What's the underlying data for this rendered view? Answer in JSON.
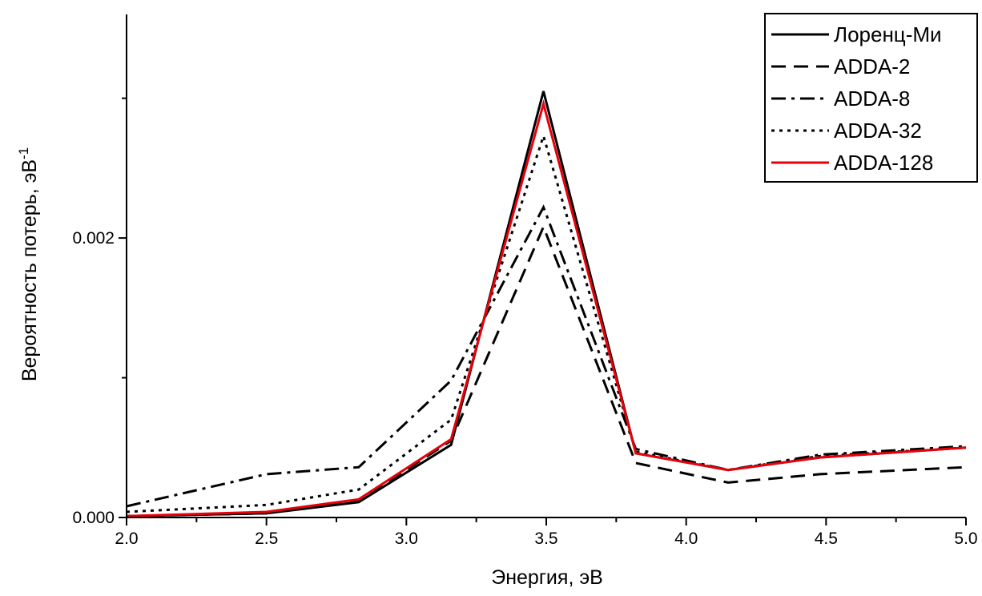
{
  "chart_data": {
    "type": "line",
    "xlabel": "Энергия, эВ",
    "ylabel": "Вероятность потерь, эВ",
    "ylabel_superscript": "-1",
    "xlim": [
      2.0,
      5.0
    ],
    "ylim": [
      0.0,
      0.0036
    ],
    "x_ticks": [
      2.0,
      2.5,
      3.0,
      3.5,
      4.0,
      4.5,
      5.0
    ],
    "x_tick_labels": [
      "2.0",
      "2.5",
      "3.0",
      "3.5",
      "4.0",
      "4.5",
      "5.0"
    ],
    "y_ticks": [
      0.0,
      0.002
    ],
    "y_tick_labels": [
      "0.000",
      "0.002"
    ],
    "grid": false,
    "legend_position": "top-right",
    "x": [
      2.0,
      2.5,
      2.83,
      3.16,
      3.49,
      3.82,
      4.15,
      4.48,
      5.0
    ],
    "series": [
      {
        "name": "Лоренц-Ми",
        "style": "solid",
        "color": "#000000",
        "values": [
          1e-05,
          3e-05,
          0.00011,
          0.00052,
          0.00305,
          0.00046,
          0.00034,
          0.00043,
          0.0005
        ]
      },
      {
        "name": "ADDA-2",
        "style": "dash",
        "color": "#000000",
        "values": [
          1e-05,
          3e-05,
          0.00012,
          0.00055,
          0.00208,
          0.00039,
          0.00025,
          0.00031,
          0.00036
        ]
      },
      {
        "name": "ADDA-8",
        "style": "dashdot",
        "color": "#000000",
        "values": [
          8e-05,
          0.00031,
          0.00036,
          0.00098,
          0.00222,
          0.00049,
          0.00034,
          0.00045,
          0.00051
        ]
      },
      {
        "name": "ADDA-32",
        "style": "dot",
        "color": "#000000",
        "values": [
          4e-05,
          9e-05,
          0.0002,
          0.0007,
          0.00273,
          0.00047,
          0.00034,
          0.00044,
          0.0005
        ]
      },
      {
        "name": "ADDA-128",
        "style": "solid",
        "color": "#e8000b",
        "values": [
          1e-05,
          4e-05,
          0.00013,
          0.00056,
          0.00296,
          0.00046,
          0.00034,
          0.00043,
          0.0005
        ]
      }
    ]
  }
}
